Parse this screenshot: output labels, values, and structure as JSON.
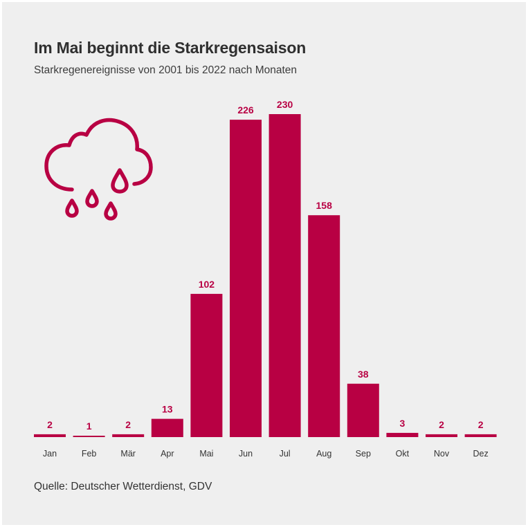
{
  "header": {
    "title": "Im Mai beginnt die Starkregensaison",
    "subtitle": "Starkregenereignisse von 2001 bis 2022 nach Monaten"
  },
  "footer": {
    "source": "Quelle: Deutscher Wetterdienst, GDV"
  },
  "icon": {
    "name": "rain-cloud-icon"
  },
  "colors": {
    "bar": "#b80043",
    "background": "#efefef",
    "text": "#2f2f2f"
  },
  "chart_data": {
    "type": "bar",
    "title": "Im Mai beginnt die Starkregensaison",
    "subtitle": "Starkregenereignisse von 2001 bis 2022 nach Monaten",
    "categories": [
      "Jan",
      "Feb",
      "Mär",
      "Apr",
      "Mai",
      "Jun",
      "Jul",
      "Aug",
      "Sep",
      "Okt",
      "Nov",
      "Dez"
    ],
    "values": [
      2,
      1,
      2,
      13,
      102,
      226,
      230,
      158,
      38,
      3,
      2,
      2
    ],
    "xlabel": "",
    "ylabel": "",
    "ylim": [
      0,
      230
    ],
    "grid": false,
    "data_labels": true
  }
}
